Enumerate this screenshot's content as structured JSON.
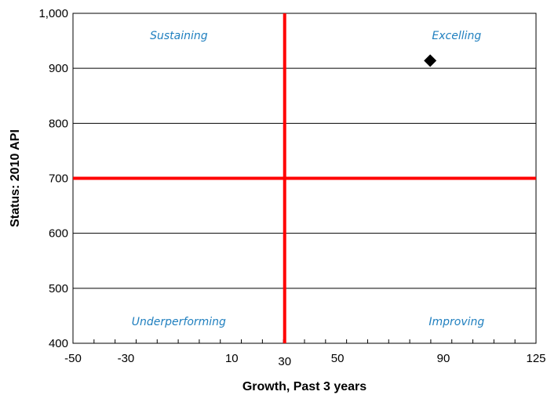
{
  "chart_data": {
    "type": "scatter",
    "xlabel": "Growth, Past 3 years",
    "ylabel": "Status: 2010 API",
    "xlim": [
      -50,
      125
    ],
    "ylim": [
      400,
      1000
    ],
    "x_tick_labels": [
      {
        "value": -50,
        "label": "-50"
      },
      {
        "value": -30,
        "label": "-30"
      },
      {
        "value": 10,
        "label": "10"
      },
      {
        "value": 30,
        "label": "30"
      },
      {
        "value": 50,
        "label": "50"
      },
      {
        "value": 90,
        "label": "90"
      },
      {
        "value": 125,
        "label": "125"
      }
    ],
    "y_ticks": [
      {
        "value": 400,
        "label": "400"
      },
      {
        "value": 500,
        "label": "500"
      },
      {
        "value": 600,
        "label": "600"
      },
      {
        "value": 700,
        "label": "700"
      },
      {
        "value": 800,
        "label": "800"
      },
      {
        "value": 900,
        "label": "900"
      },
      {
        "value": 1000,
        "label": "1,000"
      }
    ],
    "grid": "horizontal",
    "reference_lines": {
      "x": 30,
      "y": 700,
      "color": "#ff0000"
    },
    "points": [
      {
        "x": 85,
        "y": 914,
        "marker": "diamond",
        "color": "#000000"
      }
    ],
    "quadrant_labels": [
      {
        "text": "Sustaining",
        "x": -10,
        "y": 960
      },
      {
        "text": "Excelling",
        "x": 95,
        "y": 960
      },
      {
        "text": "Underperforming",
        "x": -10,
        "y": 440
      },
      {
        "text": "Improving",
        "x": 95,
        "y": 440
      }
    ],
    "quadrant_label_color": "#1f7fbf"
  }
}
